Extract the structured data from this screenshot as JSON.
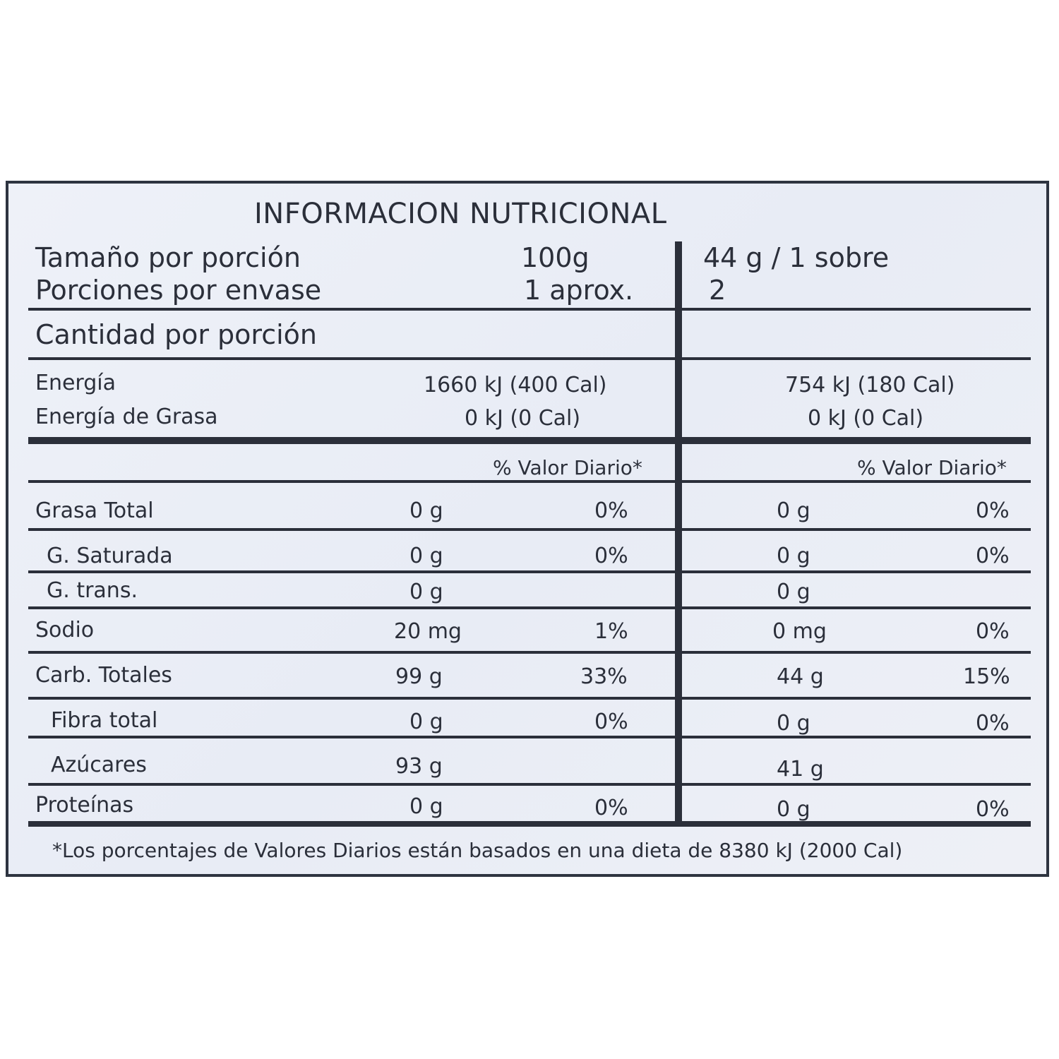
{
  "title": "INFORMACION NUTRICIONAL",
  "header": {
    "serving_size_label": "Tamaño por porción",
    "serving_size_100": "100g",
    "serving_size_sachet": "44 g / 1 sobre",
    "servings_label": "Porciones por envase",
    "servings_100": "1 aprox.",
    "servings_sachet": "2",
    "amount_label": "Cantidad por porción"
  },
  "energy": {
    "energy_label": "Energía",
    "energy_100": "1660 kJ (400 Cal)",
    "energy_sachet": "754 kJ (180 Cal)",
    "fat_energy_label": "Energía de Grasa",
    "fat_energy_100": "0 kJ (0 Cal)",
    "fat_energy_sachet": "0 kJ (0 Cal)"
  },
  "dv_header": "% Valor Diario*",
  "rows": [
    {
      "label": "Grasa Total",
      "amt_100": "0 g",
      "dv_100": "0%",
      "amt_sachet": "0 g",
      "dv_sachet": "0%"
    },
    {
      "label": "G. Saturada",
      "amt_100": "0 g",
      "dv_100": "0%",
      "amt_sachet": "0 g",
      "dv_sachet": "0%"
    },
    {
      "label": "G. trans.",
      "amt_100": "0 g",
      "dv_100": "",
      "amt_sachet": "0 g",
      "dv_sachet": ""
    },
    {
      "label": "Sodio",
      "amt_100": "20 mg",
      "dv_100": "1%",
      "amt_sachet": "0 mg",
      "dv_sachet": "0%"
    },
    {
      "label": "Carb. Totales",
      "amt_100": "99 g",
      "dv_100": "33%",
      "amt_sachet": "44 g",
      "dv_sachet": "15%"
    },
    {
      "label": "Fibra total",
      "amt_100": "0 g",
      "dv_100": "0%",
      "amt_sachet": "0 g",
      "dv_sachet": "0%"
    },
    {
      "label": "Azúcares",
      "amt_100": "93 g",
      "dv_100": "",
      "amt_sachet": "41 g",
      "dv_sachet": ""
    },
    {
      "label": "Proteínas",
      "amt_100": "0 g",
      "dv_100": "0%",
      "amt_sachet": "0 g",
      "dv_sachet": "0%"
    }
  ],
  "footnote": "*Los porcentajes de Valores Diarios están basados en una dieta de 8380 kJ (2000 Cal)"
}
